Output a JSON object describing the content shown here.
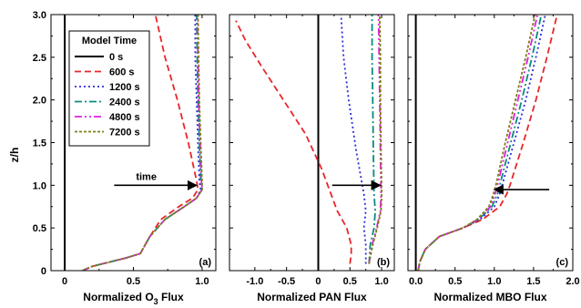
{
  "figure": {
    "ylabel": "z/h",
    "legend": {
      "title": "Model Time",
      "placement": "upper-left of panel (a)",
      "entries": [
        {
          "label": "0 s",
          "color": "#000000",
          "dash": "solid"
        },
        {
          "label": "600 s",
          "color": "#e8262a",
          "dash": "dash"
        },
        {
          "label": "1200 s",
          "color": "#2b2bd8",
          "dash": "dot"
        },
        {
          "label": "2400 s",
          "color": "#078c7c",
          "dash": "dashdot"
        },
        {
          "label": "4800 s",
          "color": "#e01ee0",
          "dash": "dashdotdot"
        },
        {
          "label": "7200 s",
          "color": "#7d7d12",
          "dash": "shortdot"
        }
      ]
    }
  },
  "chart_data": [
    {
      "type": "line",
      "panel_label": "(a)",
      "xlabel": "Normalized O3 Flux",
      "xlabel_main": "Normalized O",
      "xlabel_sub": "3",
      "xlabel_tail": " Flux",
      "xlim": [
        -0.1,
        1.1
      ],
      "ylim": [
        0,
        3
      ],
      "xticks": [
        0,
        0.5,
        1.0
      ],
      "xtick_labels": [
        "0",
        "0.5",
        "1.0"
      ],
      "yticks": [
        0,
        0.5,
        1.0,
        1.5,
        2.0,
        2.5,
        3.0
      ],
      "ytick_labels": [
        "0",
        "0.5",
        "1.0",
        "1.5",
        "2.0",
        "2.5",
        "3.0"
      ],
      "annotation": {
        "text": "time",
        "arrow_from": [
          0.36,
          1.0
        ],
        "arrow_to": [
          0.96,
          1.0
        ]
      },
      "series": [
        {
          "name": "0 s",
          "x": [
            0,
            0
          ],
          "y": [
            0,
            3
          ]
        },
        {
          "name": "600 s",
          "x": [
            0.13,
            0.2,
            0.45,
            0.55,
            0.62,
            0.7,
            0.83,
            0.93,
            0.97,
            0.96,
            0.9,
            0.82,
            0.73,
            0.66
          ],
          "y": [
            0.0,
            0.05,
            0.15,
            0.2,
            0.4,
            0.6,
            0.75,
            0.85,
            0.95,
            1.05,
            1.5,
            2.0,
            2.5,
            3.0
          ]
        },
        {
          "name": "1200 s",
          "x": [
            0.13,
            0.2,
            0.45,
            0.55,
            0.62,
            0.73,
            0.87,
            0.96,
            0.99,
            0.98,
            0.97,
            0.96,
            0.95,
            0.95
          ],
          "y": [
            0.0,
            0.05,
            0.15,
            0.2,
            0.4,
            0.6,
            0.75,
            0.85,
            0.95,
            1.05,
            1.5,
            2.0,
            2.5,
            3.0
          ]
        },
        {
          "name": "2400 s",
          "x": [
            0.13,
            0.2,
            0.45,
            0.55,
            0.62,
            0.73,
            0.87,
            0.96,
            1.0,
            0.99,
            0.98,
            0.97,
            0.965,
            0.96
          ],
          "y": [
            0.0,
            0.05,
            0.15,
            0.2,
            0.4,
            0.6,
            0.75,
            0.85,
            0.95,
            1.05,
            1.5,
            2.0,
            2.5,
            3.0
          ]
        },
        {
          "name": "4800 s",
          "x": [
            0.13,
            0.2,
            0.45,
            0.55,
            0.62,
            0.73,
            0.87,
            0.96,
            1.0,
            0.995,
            0.985,
            0.975,
            0.97,
            0.965
          ],
          "y": [
            0.0,
            0.05,
            0.15,
            0.2,
            0.4,
            0.6,
            0.75,
            0.85,
            0.95,
            1.05,
            1.5,
            2.0,
            2.5,
            3.0
          ]
        },
        {
          "name": "7200 s",
          "x": [
            0.13,
            0.2,
            0.45,
            0.55,
            0.62,
            0.73,
            0.87,
            0.96,
            1.0,
            1.0,
            0.99,
            0.98,
            0.975,
            0.97
          ],
          "y": [
            0.0,
            0.05,
            0.15,
            0.2,
            0.4,
            0.6,
            0.75,
            0.85,
            0.95,
            1.05,
            1.5,
            2.0,
            2.5,
            3.0
          ]
        }
      ]
    },
    {
      "type": "line",
      "panel_label": "(b)",
      "xlabel": "Normalized PAN Flux",
      "xlim": [
        -1.4,
        1.2
      ],
      "ylim": [
        0,
        3
      ],
      "xticks": [
        -1.0,
        -0.5,
        0,
        0.5,
        1.0
      ],
      "xtick_labels": [
        "-1.0",
        "-0.5",
        "0",
        "0.5",
        "1.0"
      ],
      "yticks": [
        0,
        0.5,
        1.0,
        1.5,
        2.0,
        2.5,
        3.0
      ],
      "ytick_labels": [],
      "annotation": {
        "text": "",
        "arrow_from": [
          0.22,
          1.0
        ],
        "arrow_to": [
          0.98,
          1.0
        ]
      },
      "series": [
        {
          "name": "0 s",
          "x": [
            0,
            0
          ],
          "y": [
            0,
            3
          ]
        },
        {
          "name": "600 s",
          "x": [
            0.5,
            0.52,
            0.52,
            0.45,
            0.3,
            0.2,
            0.05,
            -0.2,
            -0.55,
            -0.9,
            -1.15,
            -1.3
          ],
          "y": [
            0.08,
            0.2,
            0.3,
            0.5,
            0.7,
            0.9,
            1.2,
            1.6,
            2.0,
            2.4,
            2.7,
            2.93
          ]
        },
        {
          "name": "1200 s",
          "x": [
            0.75,
            0.75,
            0.72,
            0.75,
            0.72,
            0.6,
            0.48,
            0.4,
            0.36
          ],
          "y": [
            0.08,
            0.3,
            0.5,
            0.7,
            0.9,
            1.4,
            2.0,
            2.5,
            3.0
          ]
        },
        {
          "name": "2400 s",
          "x": [
            0.8,
            0.82,
            0.88,
            0.9,
            0.88,
            0.87,
            0.86,
            0.85,
            0.85
          ],
          "y": [
            0.08,
            0.3,
            0.5,
            0.7,
            0.9,
            1.4,
            2.0,
            2.5,
            3.0
          ]
        },
        {
          "name": "4800 s",
          "x": [
            0.8,
            0.85,
            0.92,
            0.98,
            0.99,
            0.98,
            0.97,
            0.96,
            0.95
          ],
          "y": [
            0.08,
            0.3,
            0.5,
            0.7,
            0.9,
            1.4,
            2.0,
            2.5,
            3.0
          ]
        },
        {
          "name": "7200 s",
          "x": [
            0.8,
            0.86,
            0.93,
            0.99,
            1.0,
            0.99,
            0.98,
            0.98,
            0.97
          ],
          "y": [
            0.08,
            0.3,
            0.5,
            0.7,
            0.9,
            1.4,
            2.0,
            2.5,
            3.0
          ]
        }
      ]
    },
    {
      "type": "line",
      "panel_label": "(c)",
      "xlabel": "Normalized MBO Flux",
      "xlim": [
        -0.1,
        2.0
      ],
      "ylim": [
        0,
        3
      ],
      "xticks": [
        0,
        0.5,
        1.0,
        1.5,
        2.0
      ],
      "xtick_labels": [
        "0.0",
        "0.5",
        "1.0",
        "1.5",
        "2.0"
      ],
      "yticks": [
        0,
        0.5,
        1.0,
        1.5,
        2.0,
        2.5,
        3.0
      ],
      "ytick_labels": [],
      "annotation": {
        "text": "",
        "arrow_from": [
          1.7,
          0.95
        ],
        "arrow_to": [
          1.0,
          0.95
        ]
      },
      "series": [
        {
          "name": "0 s",
          "x": [
            0,
            0
          ],
          "y": [
            0,
            3
          ]
        },
        {
          "name": "600 s",
          "x": [
            0.03,
            0.05,
            0.12,
            0.3,
            0.6,
            0.85,
            1.07,
            1.16,
            1.2,
            1.37,
            1.53,
            1.67,
            1.8
          ],
          "y": [
            0.0,
            0.1,
            0.25,
            0.4,
            0.5,
            0.6,
            0.75,
            0.9,
            1.0,
            1.5,
            2.0,
            2.5,
            3.0
          ]
        },
        {
          "name": "1200 s",
          "x": [
            0.03,
            0.05,
            0.12,
            0.3,
            0.6,
            0.82,
            1.0,
            1.07,
            1.1,
            1.25,
            1.4,
            1.53,
            1.65
          ],
          "y": [
            0.0,
            0.1,
            0.25,
            0.4,
            0.5,
            0.6,
            0.75,
            0.9,
            1.0,
            1.5,
            2.0,
            2.5,
            3.0
          ]
        },
        {
          "name": "2400 s",
          "x": [
            0.03,
            0.05,
            0.12,
            0.3,
            0.6,
            0.8,
            0.97,
            1.04,
            1.07,
            1.21,
            1.35,
            1.48,
            1.6
          ],
          "y": [
            0.0,
            0.1,
            0.25,
            0.4,
            0.5,
            0.6,
            0.75,
            0.9,
            1.0,
            1.5,
            2.0,
            2.5,
            3.0
          ]
        },
        {
          "name": "4800 s",
          "x": [
            0.03,
            0.05,
            0.12,
            0.3,
            0.6,
            0.79,
            0.95,
            1.01,
            1.04,
            1.17,
            1.3,
            1.43,
            1.55
          ],
          "y": [
            0.0,
            0.1,
            0.25,
            0.4,
            0.5,
            0.6,
            0.75,
            0.9,
            1.0,
            1.5,
            2.0,
            2.5,
            3.0
          ]
        },
        {
          "name": "7200 s",
          "x": [
            0.03,
            0.05,
            0.12,
            0.3,
            0.6,
            0.78,
            0.93,
            0.99,
            1.02,
            1.14,
            1.27,
            1.4,
            1.52
          ],
          "y": [
            0.0,
            0.1,
            0.25,
            0.4,
            0.5,
            0.6,
            0.75,
            0.9,
            1.0,
            1.5,
            2.0,
            2.5,
            3.0
          ]
        }
      ]
    }
  ]
}
